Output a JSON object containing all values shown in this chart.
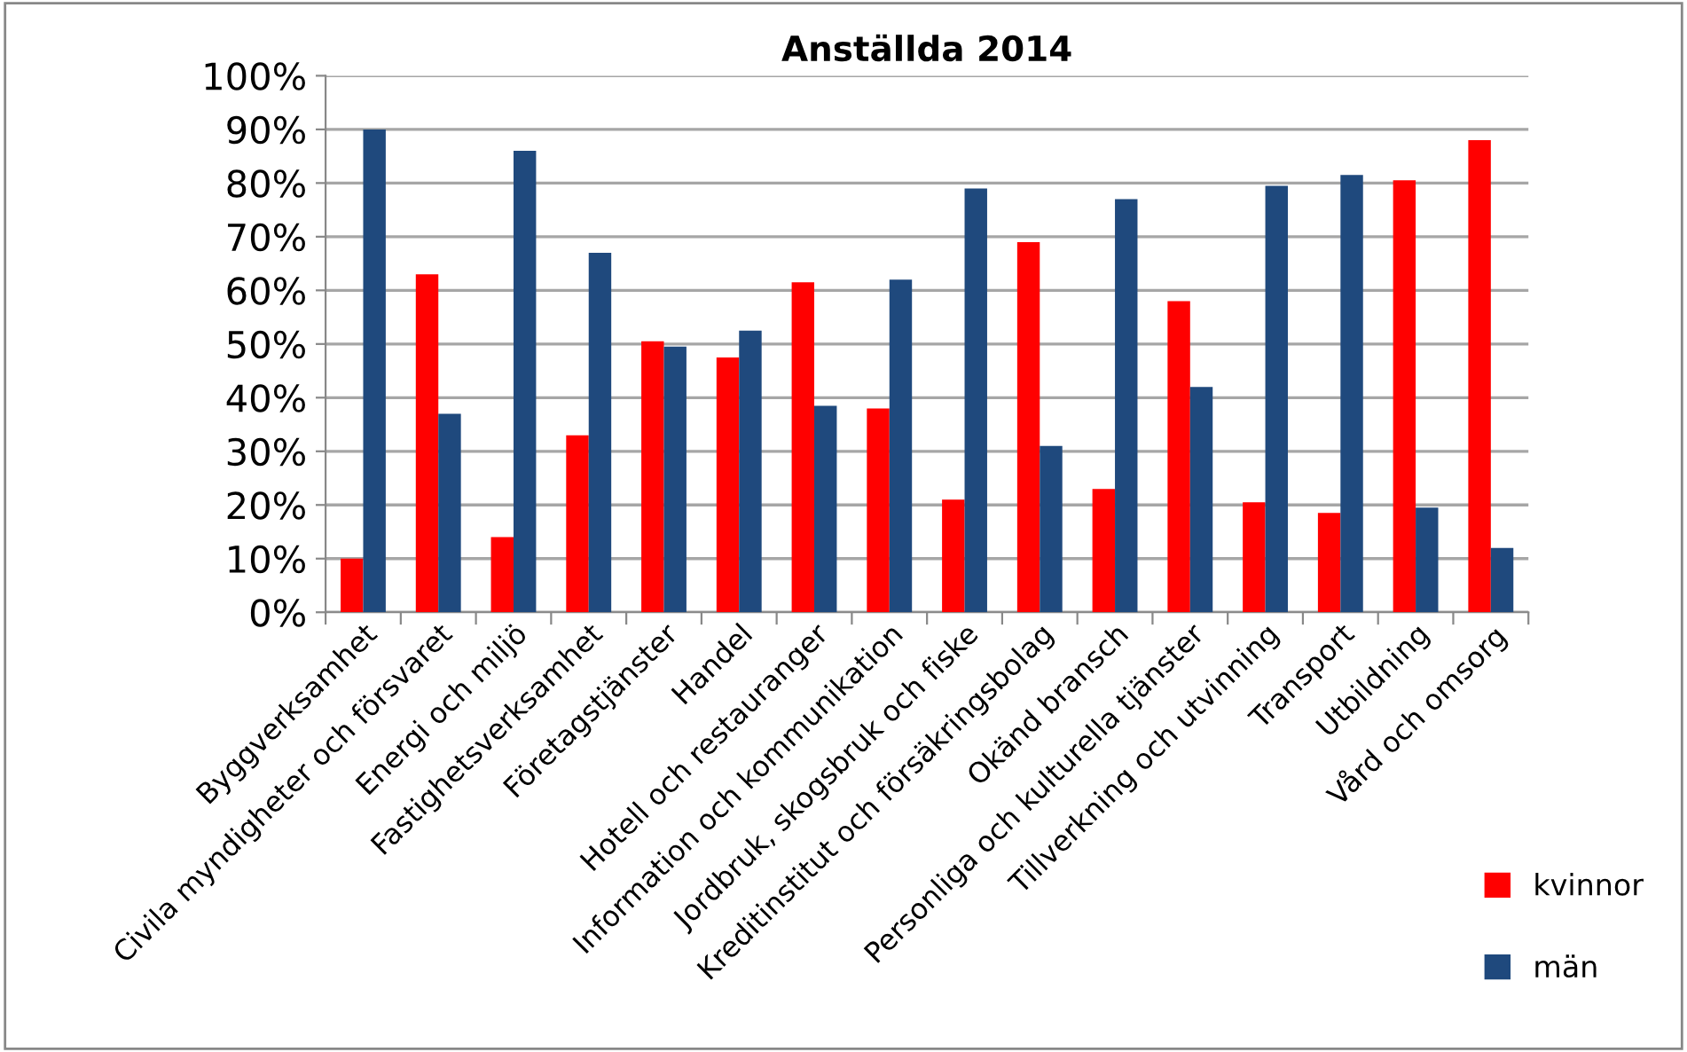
{
  "chart_data": {
    "type": "bar",
    "title": "Anställda 2014",
    "categories": [
      "Byggverksamhet",
      "Civila myndigheter och försvaret",
      "Energi och miljö",
      "Fastighetsverksamhet",
      "Företagstjänster",
      "Handel",
      "Hotell och restauranger",
      "Information och kommunikation",
      "Jordbruk, skogsbruk och fiske",
      "Kreditinstitut och försäkringsbolag",
      "Okänd bransch",
      "Personliga och kulturella tjänster",
      "Tillverkning och utvinning",
      "Transport",
      "Utbildning",
      "Vård och omsorg"
    ],
    "series": [
      {
        "name": "kvinnor",
        "color": "#ff0000",
        "values": [
          10,
          63,
          14,
          33,
          50.5,
          47.5,
          61.5,
          38,
          21,
          69,
          23,
          58,
          20.5,
          18.5,
          80.5,
          88
        ]
      },
      {
        "name": "män",
        "color": "#1f497d",
        "values": [
          90,
          37,
          86,
          67,
          49.5,
          52.5,
          38.5,
          62,
          79,
          31,
          77,
          42,
          79.5,
          81.5,
          19.5,
          12
        ]
      }
    ],
    "ylim": [
      0,
      100
    ],
    "yticks": [
      {
        "value": 0,
        "label": "0%"
      },
      {
        "value": 10,
        "label": "10%"
      },
      {
        "value": 20,
        "label": "20%"
      },
      {
        "value": 30,
        "label": "30%"
      },
      {
        "value": 40,
        "label": "40%"
      },
      {
        "value": 50,
        "label": "50%"
      },
      {
        "value": 60,
        "label": "60%"
      },
      {
        "value": 70,
        "label": "70%"
      },
      {
        "value": 80,
        "label": "80%"
      },
      {
        "value": 90,
        "label": "90%"
      },
      {
        "value": 100,
        "label": "100%"
      }
    ],
    "grid": "y",
    "legend": "bottom right"
  }
}
